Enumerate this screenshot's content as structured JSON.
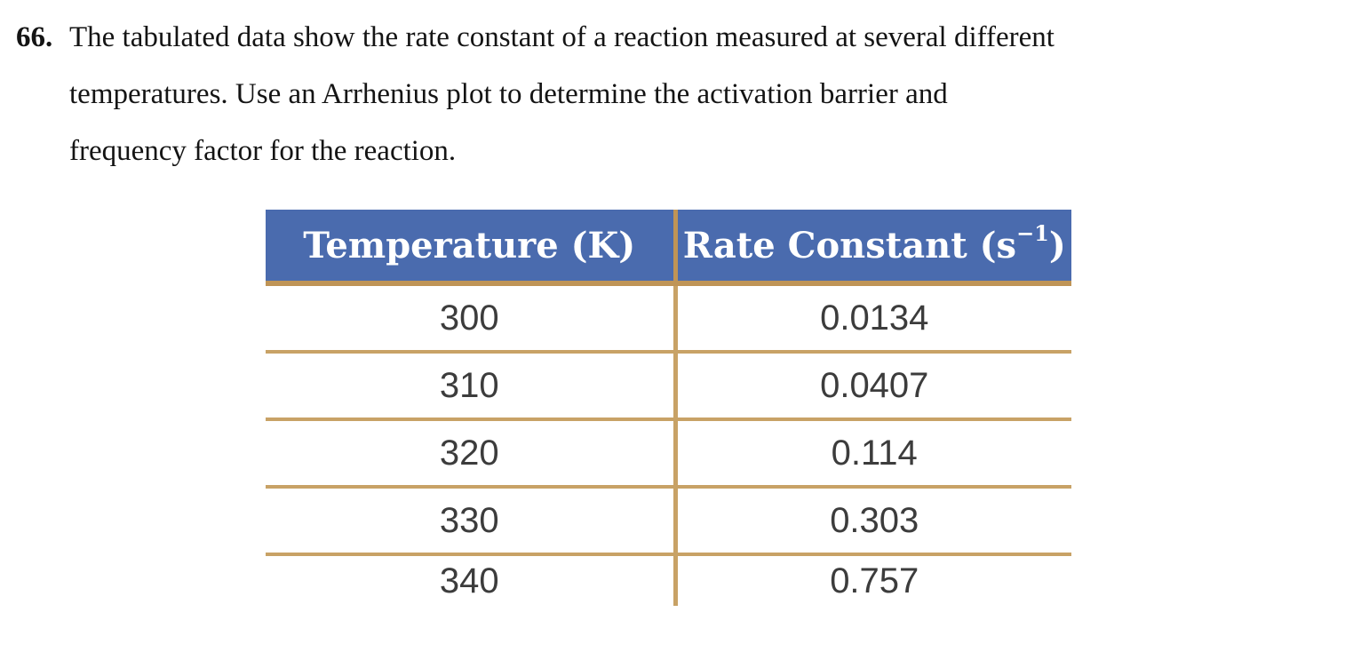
{
  "problem": {
    "number": "66.",
    "lines": [
      "The tabulated data show the rate constant of a reaction measured at several different",
      "temperatures. Use an Arrhenius plot to determine the activation barrier and",
      "frequency factor for the reaction."
    ]
  },
  "table": {
    "header": {
      "temperature": "Temperature (K)",
      "rate_prefix": "Rate Constant (s",
      "rate_sup": "−1",
      "rate_suffix": ")"
    },
    "rows": [
      {
        "temperature": "300",
        "rate_constant": "0.0134"
      },
      {
        "temperature": "310",
        "rate_constant": "0.0407"
      },
      {
        "temperature": "320",
        "rate_constant": "0.114"
      },
      {
        "temperature": "330",
        "rate_constant": "0.303"
      },
      {
        "temperature": "340",
        "rate_constant": "0.757"
      }
    ],
    "colors": {
      "header_background": "#4a6bae",
      "header_text": "#ffffff",
      "rule_gold": "#c8a266",
      "body_text": "#3c3c3c"
    }
  }
}
